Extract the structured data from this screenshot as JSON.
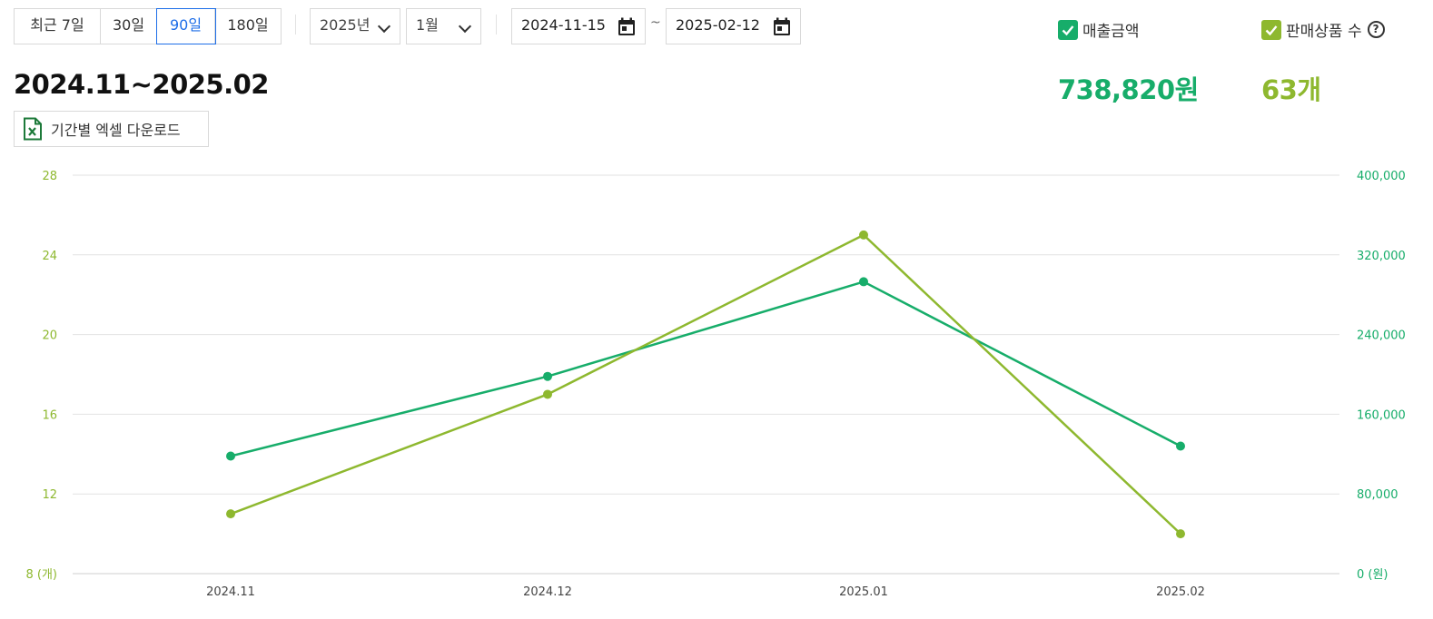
{
  "toolbar": {
    "range_buttons": [
      "최근 7일",
      "30일",
      "90일",
      "180일"
    ],
    "active_range": "90일",
    "year_select": "2025년",
    "month_select": "1월",
    "start_date": "2024-11-15",
    "range_separator": "~",
    "end_date": "2025-02-12"
  },
  "legend": {
    "sales_label": "매출금액",
    "count_label": "판매상품 수",
    "help_glyph": "?"
  },
  "summary": {
    "period": "2024.11~2025.02",
    "sales_total": "738,820원",
    "count_total": "63개"
  },
  "excel_button": {
    "label": "기간별 엑셀 다운로드"
  },
  "colors": {
    "sales": "#17ad6a",
    "count": "#8eb82f",
    "active": "#1e6ee8",
    "grid": "#dddddd"
  },
  "chart_data": {
    "type": "line",
    "categories": [
      "2024.11",
      "2024.12",
      "2025.01",
      "2025.02"
    ],
    "series": [
      {
        "name": "매출금액",
        "axis": "right",
        "color": "#17ad6a",
        "values": [
          118000,
          198000,
          293000,
          128000
        ]
      },
      {
        "name": "판매상품 수",
        "axis": "left",
        "color": "#8eb82f",
        "values": [
          11,
          17,
          25,
          10
        ]
      }
    ],
    "y_left": {
      "ticks": [
        "8 (개)",
        "12",
        "16",
        "20",
        "24",
        "28"
      ],
      "min": 8,
      "max": 28,
      "unit": "(개)"
    },
    "y_right": {
      "ticks": [
        "0 (원)",
        "80,000",
        "160,000",
        "240,000",
        "320,000",
        "400,000"
      ],
      "min": 0,
      "max": 400000,
      "unit": "(원)"
    },
    "grid": true
  }
}
